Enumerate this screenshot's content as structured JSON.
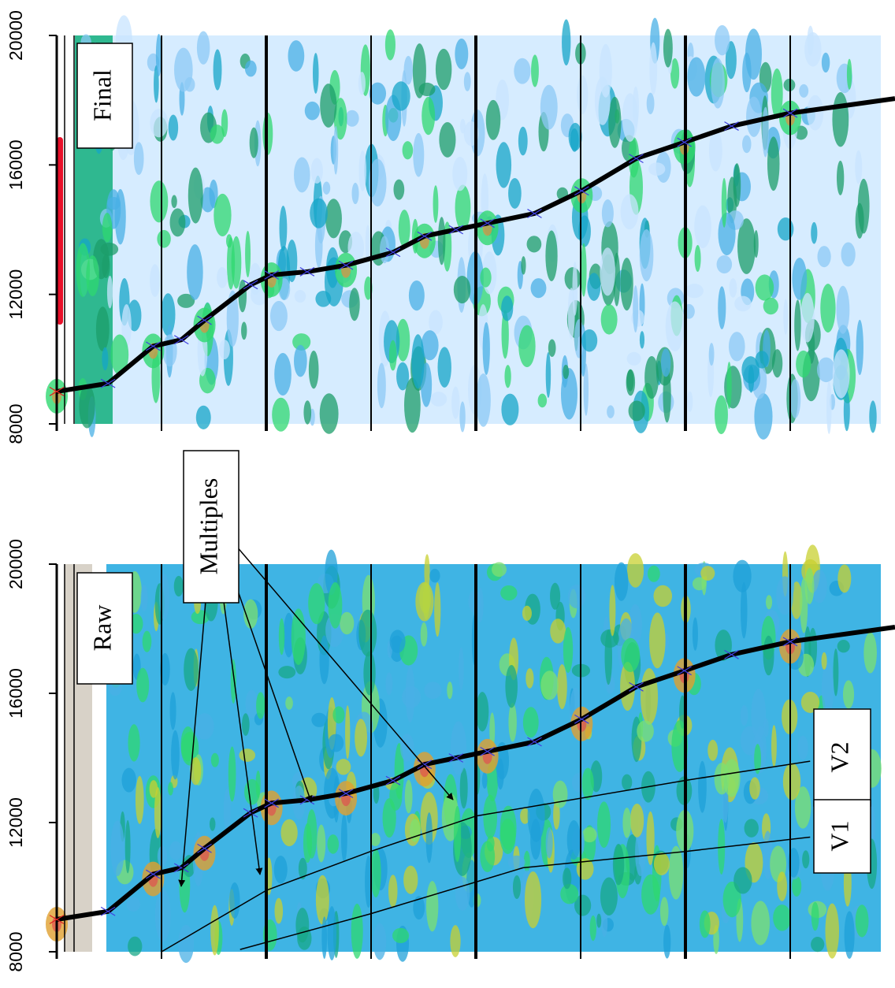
{
  "chart_data": [
    {
      "type": "line",
      "title": "Final",
      "xlim": [
        0,
        8
      ],
      "xticks": [
        0,
        1,
        2,
        3,
        4,
        5,
        6,
        7
      ],
      "ylim": [
        8000,
        20000
      ],
      "yticks": [
        8000,
        12000,
        16000,
        20000
      ],
      "series": [
        {
          "color": "#000000",
          "x": [
            0,
            0.49,
            0.92,
            1.19,
            1.41,
            1.85,
            2.05,
            2.39,
            2.76,
            3.21,
            3.51,
            3.81,
            4.11,
            4.56,
            5.01,
            5.53,
            5.99,
            6.44,
            7.0,
            8.0
          ],
          "values": [
            9000,
            9250,
            10400,
            10600,
            11200,
            12300,
            12600,
            12700,
            12900,
            13300,
            13800,
            14000,
            14200,
            14500,
            15200,
            16200,
            16700,
            17200,
            17600,
            18050
          ]
        }
      ]
    },
    {
      "type": "line",
      "title": "Raw",
      "xlim": [
        0,
        8
      ],
      "xticks": [
        0,
        1,
        2,
        3,
        4,
        5,
        6,
        7
      ],
      "ylim": [
        8000,
        20000
      ],
      "yticks": [
        8000,
        12000,
        16000,
        20000
      ],
      "annotations": [
        {
          "text": "Multiples"
        }
      ],
      "series": [
        {
          "color": "#000000",
          "x": [
            0,
            0.49,
            0.92,
            1.19,
            1.41,
            1.85,
            2.05,
            2.39,
            2.76,
            3.21,
            3.51,
            3.81,
            4.11,
            4.56,
            5.01,
            5.53,
            5.99,
            6.44,
            7.0,
            8.0
          ],
          "values": [
            9000,
            9250,
            10400,
            10600,
            11200,
            12300,
            12600,
            12700,
            12900,
            13300,
            13800,
            14000,
            14200,
            14500,
            15200,
            16200,
            16700,
            17200,
            17600,
            18050
          ]
        },
        {
          "name": "V2",
          "color": "#000000",
          "x": [
            1.0,
            2.0,
            2.99,
            4.0,
            5.99,
            7.19
          ],
          "values": [
            8000,
            9900,
            11100,
            12200,
            13300,
            13900
          ]
        },
        {
          "name": "V1",
          "color": "#000000",
          "x": [
            1.75,
            2.99,
            4.45,
            5.99,
            7.19
          ],
          "values": [
            8070,
            9170,
            10600,
            11100,
            11550
          ]
        }
      ]
    }
  ]
}
